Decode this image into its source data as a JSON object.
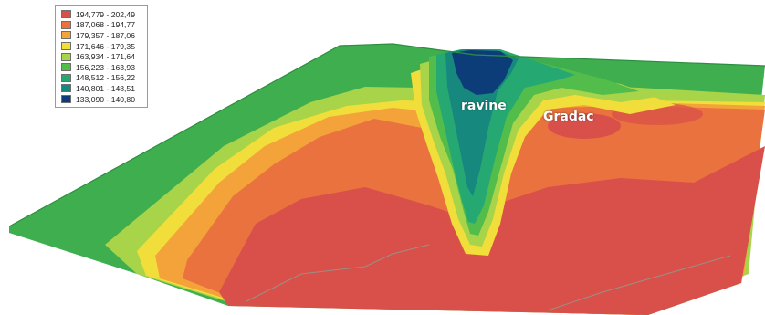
{
  "legend": {
    "items": [
      {
        "label": "194,779 - 202,49",
        "color": "#d9504a"
      },
      {
        "label": "187,068 - 194,77",
        "color": "#e9723f"
      },
      {
        "label": "179,357 - 187,06",
        "color": "#f3a33a"
      },
      {
        "label": "171,646 - 179,35",
        "color": "#f2de3a"
      },
      {
        "label": "163,934 - 171,64",
        "color": "#a8d44a"
      },
      {
        "label": "156,223 - 163,93",
        "color": "#52bd4a"
      },
      {
        "label": "148,512 - 156,22",
        "color": "#26a873"
      },
      {
        "label": "140,801 - 148,51",
        "color": "#16887e"
      },
      {
        "label": "133,090 - 140,80",
        "color": "#0c3d78"
      }
    ]
  },
  "labels": {
    "ravine": "ravine",
    "gradac": "Gradac"
  }
}
